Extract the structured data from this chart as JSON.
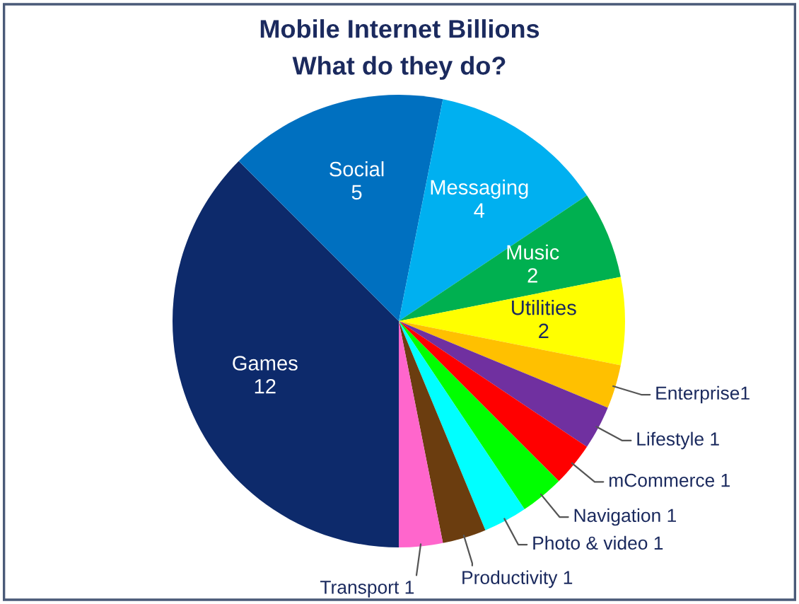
{
  "chart_data": {
    "type": "pie",
    "title": "Mobile Internet Billions",
    "subtitle": "What do they do?",
    "categories": [
      "Games",
      "Social",
      "Messaging",
      "Music",
      "Utilities",
      "Enterprise1",
      "Lifestyle 1",
      "mCommerce 1",
      "Navigation 1",
      "Photo & video 1",
      "Productivity 1",
      "Transport 1"
    ],
    "values": [
      12,
      5,
      4,
      2,
      2,
      1,
      1,
      1,
      1,
      1,
      1,
      1
    ],
    "value_labels": [
      "12",
      "5",
      "4",
      "2",
      "2",
      null,
      null,
      null,
      null,
      null,
      null,
      null
    ],
    "colors": [
      "#0d2a6b",
      "#0070c0",
      "#00b0f0",
      "#00b050",
      "#ffff00",
      "#ffc000",
      "#7030a0",
      "#ff0000",
      "#00ff00",
      "#00ffff",
      "#6b3d0f",
      "#ff66cc"
    ]
  }
}
